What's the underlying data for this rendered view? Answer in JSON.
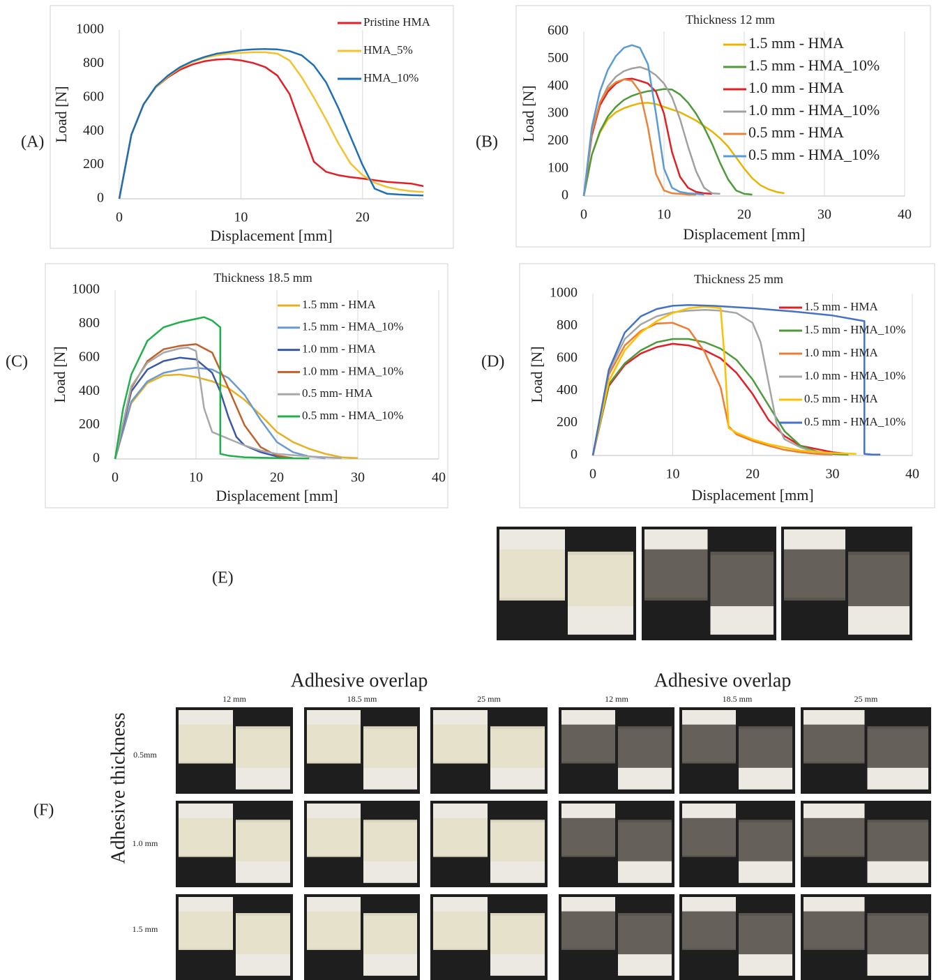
{
  "chart_data": [
    {
      "type": "line",
      "label": "(A)",
      "x_label": "Displacement  [mm]",
      "y_label": "Load [N]",
      "xlim": [
        0,
        25
      ],
      "xticks": [
        0,
        10,
        20
      ],
      "ylim": [
        0,
        1000
      ],
      "yticks": [
        0,
        200,
        400,
        600,
        800,
        1000
      ],
      "grid": "x",
      "legend": "upper right",
      "series": [
        {
          "name": "Pristine HMA",
          "color": "#e41e26",
          "x": [
            0,
            1,
            2,
            3,
            4,
            5,
            6,
            7,
            8,
            9,
            10,
            11,
            12,
            13,
            14,
            15,
            16,
            17,
            18,
            19,
            20,
            21,
            22,
            23,
            24,
            25
          ],
          "values": [
            0,
            380,
            560,
            660,
            720,
            765,
            795,
            815,
            825,
            828,
            820,
            805,
            780,
            730,
            620,
            420,
            220,
            160,
            140,
            128,
            120,
            110,
            100,
            95,
            90,
            75
          ]
        },
        {
          "name": "HMA_5%",
          "color": "#f5c12e",
          "x": [
            0,
            1,
            2,
            3,
            4,
            5,
            6,
            7,
            8,
            9,
            10,
            11,
            12,
            13,
            14,
            15,
            16,
            17,
            18,
            19,
            20,
            21,
            22,
            23,
            24,
            25
          ],
          "values": [
            0,
            380,
            560,
            660,
            725,
            775,
            810,
            835,
            850,
            860,
            865,
            868,
            868,
            860,
            820,
            720,
            600,
            470,
            330,
            210,
            140,
            95,
            70,
            55,
            45,
            40
          ]
        },
        {
          "name": "HMA_10%",
          "color": "#1f6fb5",
          "x": [
            0,
            1,
            2,
            3,
            4,
            5,
            6,
            7,
            8,
            9,
            10,
            11,
            12,
            13,
            14,
            15,
            16,
            17,
            18,
            19,
            20,
            21,
            22,
            23,
            24,
            25
          ],
          "values": [
            0,
            380,
            560,
            665,
            730,
            780,
            815,
            840,
            860,
            870,
            880,
            885,
            887,
            885,
            875,
            850,
            790,
            690,
            540,
            370,
            200,
            60,
            30,
            25,
            22,
            20
          ]
        }
      ]
    },
    {
      "type": "line",
      "label": "(B)",
      "title": "Thickness  12 mm",
      "x_label": "Displacement  [mm]",
      "y_label": "Load [N]",
      "xlim": [
        0,
        40
      ],
      "xticks": [
        0,
        10,
        20,
        30,
        40
      ],
      "ylim": [
        0,
        600
      ],
      "yticks": [
        0,
        100,
        200,
        300,
        400,
        500,
        600
      ],
      "grid": "x",
      "legend": "upper right",
      "series": [
        {
          "name": "1.5 mm - HMA",
          "color": "#e8b400",
          "x": [
            0,
            1,
            2,
            3,
            4,
            5,
            6,
            7,
            8,
            9,
            10,
            11,
            12,
            13,
            14,
            15,
            16,
            17,
            18,
            19,
            20,
            21,
            22,
            23,
            24,
            25
          ],
          "values": [
            0,
            150,
            230,
            280,
            305,
            320,
            330,
            338,
            340,
            335,
            325,
            315,
            305,
            290,
            275,
            255,
            235,
            210,
            180,
            140,
            100,
            65,
            40,
            25,
            15,
            10
          ]
        },
        {
          "name": "1.5 mm - HMA_10%",
          "color": "#4e9a3a",
          "x": [
            0,
            1,
            2,
            3,
            4,
            5,
            6,
            7,
            8,
            9,
            10,
            11,
            12,
            13,
            14,
            15,
            16,
            17,
            18,
            19,
            20,
            21
          ],
          "values": [
            0,
            150,
            235,
            290,
            325,
            350,
            365,
            375,
            382,
            385,
            390,
            388,
            370,
            340,
            300,
            250,
            190,
            120,
            60,
            20,
            8,
            5
          ]
        },
        {
          "name": "1.0 mm  - HMA",
          "color": "#e02020",
          "x": [
            0,
            1,
            2,
            3,
            4,
            5,
            6,
            7,
            8,
            9,
            10,
            11,
            12,
            13,
            14,
            15,
            16
          ],
          "values": [
            0,
            220,
            330,
            380,
            410,
            425,
            428,
            420,
            410,
            380,
            300,
            160,
            70,
            30,
            15,
            10,
            8
          ]
        },
        {
          "name": "1.0 mm  - HMA_10%",
          "color": "#a0a0a0",
          "x": [
            0,
            1,
            2,
            3,
            4,
            5,
            6,
            7,
            8,
            9,
            10,
            11,
            12,
            13,
            14,
            15,
            16,
            17
          ],
          "values": [
            0,
            230,
            340,
            400,
            435,
            455,
            465,
            470,
            460,
            440,
            410,
            360,
            280,
            180,
            90,
            30,
            10,
            8
          ]
        },
        {
          "name": "0.5 mm  - HMA",
          "color": "#e8843a",
          "x": [
            0,
            1,
            2,
            3,
            4,
            5,
            6,
            7,
            8,
            9,
            10,
            11,
            12,
            13,
            14
          ],
          "values": [
            0,
            230,
            340,
            390,
            415,
            425,
            420,
            380,
            250,
            80,
            20,
            10,
            8,
            5,
            5
          ]
        },
        {
          "name": "0.5 mm - HMA_10%",
          "color": "#5b9bd5",
          "x": [
            0,
            1,
            2,
            3,
            4,
            5,
            6,
            7,
            8,
            9,
            10,
            11,
            12,
            13,
            14,
            15
          ],
          "values": [
            0,
            250,
            380,
            460,
            510,
            540,
            550,
            540,
            480,
            300,
            100,
            30,
            15,
            10,
            8,
            5
          ]
        }
      ]
    },
    {
      "type": "line",
      "label": "(C)",
      "title": "Thickness  18.5 mm",
      "x_label": "Displacement  [mm]",
      "y_label": "Load [N]",
      "xlim": [
        0,
        40
      ],
      "xticks": [
        0,
        10,
        20,
        30,
        40
      ],
      "ylim": [
        0,
        1000
      ],
      "yticks": [
        0,
        200,
        400,
        600,
        800,
        1000
      ],
      "grid": "x",
      "legend": "upper right",
      "series": [
        {
          "name": "1.5 mm - HMA",
          "color": "#e6b020",
          "x": [
            0,
            2,
            4,
            6,
            8,
            10,
            12,
            14,
            16,
            18,
            20,
            22,
            24,
            26,
            28,
            30
          ],
          "values": [
            0,
            330,
            450,
            495,
            500,
            485,
            460,
            420,
            350,
            260,
            160,
            100,
            60,
            30,
            10,
            5
          ]
        },
        {
          "name": "1.5 mm - HMA_10%",
          "color": "#6a9ad0",
          "x": [
            0,
            2,
            4,
            6,
            8,
            10,
            12,
            14,
            16,
            18,
            20,
            22,
            24,
            26
          ],
          "values": [
            0,
            340,
            460,
            510,
            530,
            540,
            530,
            480,
            380,
            230,
            100,
            40,
            15,
            5
          ]
        },
        {
          "name": "1.0 mm - HMA",
          "color": "#3a5aa8",
          "x": [
            0,
            2,
            4,
            6,
            8,
            10,
            12,
            13,
            14,
            15,
            16,
            18,
            20,
            22
          ],
          "values": [
            0,
            400,
            530,
            580,
            600,
            590,
            510,
            400,
            250,
            130,
            80,
            40,
            15,
            5
          ]
        },
        {
          "name": "1.0 mm - HMA_10%",
          "color": "#c0602a",
          "x": [
            0,
            2,
            4,
            6,
            8,
            10,
            12,
            14,
            16,
            18,
            20,
            22
          ],
          "values": [
            0,
            420,
            580,
            650,
            670,
            680,
            630,
            420,
            200,
            70,
            20,
            5
          ]
        },
        {
          "name": "0.5 mm- HMA",
          "color": "#a8a8a8",
          "x": [
            0,
            2,
            4,
            6,
            8,
            9,
            10,
            11,
            12,
            14,
            16,
            18,
            20,
            24,
            28
          ],
          "values": [
            0,
            430,
            570,
            630,
            655,
            660,
            640,
            300,
            160,
            120,
            80,
            50,
            30,
            15,
            5
          ]
        },
        {
          "name": "0.5 mm - HMA_10%",
          "color": "#1fb04a",
          "x": [
            0,
            1,
            2,
            4,
            6,
            8,
            10,
            11,
            12,
            13,
            13,
            14,
            16,
            20,
            24
          ],
          "values": [
            0,
            300,
            500,
            700,
            780,
            810,
            830,
            840,
            820,
            780,
            30,
            20,
            10,
            5,
            3
          ]
        }
      ]
    },
    {
      "type": "line",
      "label": "(D)",
      "title": "Thickness  25 mm",
      "x_label": "Displacement  [mm]",
      "y_label": "Load [N]",
      "xlim": [
        0,
        40
      ],
      "xticks": [
        0,
        10,
        20,
        30,
        40
      ],
      "ylim": [
        0,
        1000
      ],
      "yticks": [
        0,
        200,
        400,
        600,
        800,
        1000
      ],
      "grid": "x",
      "legend": "upper right",
      "series": [
        {
          "name": "1.5 mm - HMA",
          "color": "#e41e26",
          "x": [
            0,
            2,
            4,
            6,
            8,
            10,
            12,
            14,
            16,
            18,
            20,
            22,
            24,
            26,
            28,
            30,
            32
          ],
          "values": [
            0,
            430,
            560,
            630,
            670,
            690,
            680,
            650,
            600,
            510,
            380,
            220,
            120,
            60,
            40,
            20,
            10
          ]
        },
        {
          "name": "1.5 mm - HMA_10%",
          "color": "#4e9a3a",
          "x": [
            0,
            2,
            4,
            6,
            8,
            10,
            12,
            14,
            16,
            18,
            20,
            22,
            24,
            26,
            28,
            30,
            32
          ],
          "values": [
            0,
            440,
            570,
            650,
            700,
            720,
            720,
            700,
            660,
            590,
            470,
            310,
            150,
            60,
            25,
            10,
            5
          ]
        },
        {
          "name": "1.0 mm - HMA",
          "color": "#ed7d31",
          "x": [
            0,
            2,
            4,
            6,
            8,
            10,
            12,
            14,
            16,
            17,
            18,
            20,
            22,
            24,
            26,
            28,
            30
          ],
          "values": [
            0,
            500,
            680,
            770,
            815,
            820,
            780,
            640,
            420,
            180,
            130,
            90,
            60,
            35,
            20,
            10,
            5
          ]
        },
        {
          "name": "1.0 mm - HMA_10%",
          "color": "#a5a5a5",
          "x": [
            0,
            2,
            4,
            6,
            8,
            10,
            12,
            14,
            16,
            18,
            20,
            21,
            22,
            23,
            24,
            26,
            28,
            30
          ],
          "values": [
            0,
            520,
            720,
            810,
            860,
            885,
            895,
            900,
            895,
            880,
            820,
            700,
            450,
            200,
            100,
            50,
            20,
            10
          ]
        },
        {
          "name": "0.5 mm - HMA",
          "color": "#ffc000",
          "x": [
            0,
            2,
            4,
            6,
            8,
            10,
            12,
            14,
            16,
            16.5,
            17,
            18,
            20,
            22,
            26,
            30,
            33
          ],
          "values": [
            0,
            460,
            650,
            760,
            830,
            880,
            910,
            920,
            910,
            600,
            170,
            140,
            100,
            70,
            30,
            15,
            10
          ]
        },
        {
          "name": "0.5 mm - HMA_10%",
          "color": "#4472c4",
          "x": [
            0,
            2,
            4,
            6,
            8,
            10,
            12,
            15,
            20,
            25,
            30,
            34,
            34,
            35,
            36
          ],
          "values": [
            0,
            530,
            760,
            860,
            905,
            925,
            930,
            925,
            910,
            890,
            865,
            830,
            10,
            5,
            5
          ]
        }
      ]
    }
  ],
  "photos": {
    "label": "(E)"
  },
  "photo_grid": {
    "label": "(F)",
    "group_titles": [
      "Adhesive overlap",
      "Adhesive overlap"
    ],
    "column_labels": [
      "12 mm",
      "18.5 mm",
      "25 mm",
      "12 mm",
      "18.5 mm",
      "25 mm"
    ],
    "row_title": "Adhesive thickness",
    "row_labels": [
      "0.5mm",
      "1.0 mm",
      "1.5 mm"
    ]
  }
}
